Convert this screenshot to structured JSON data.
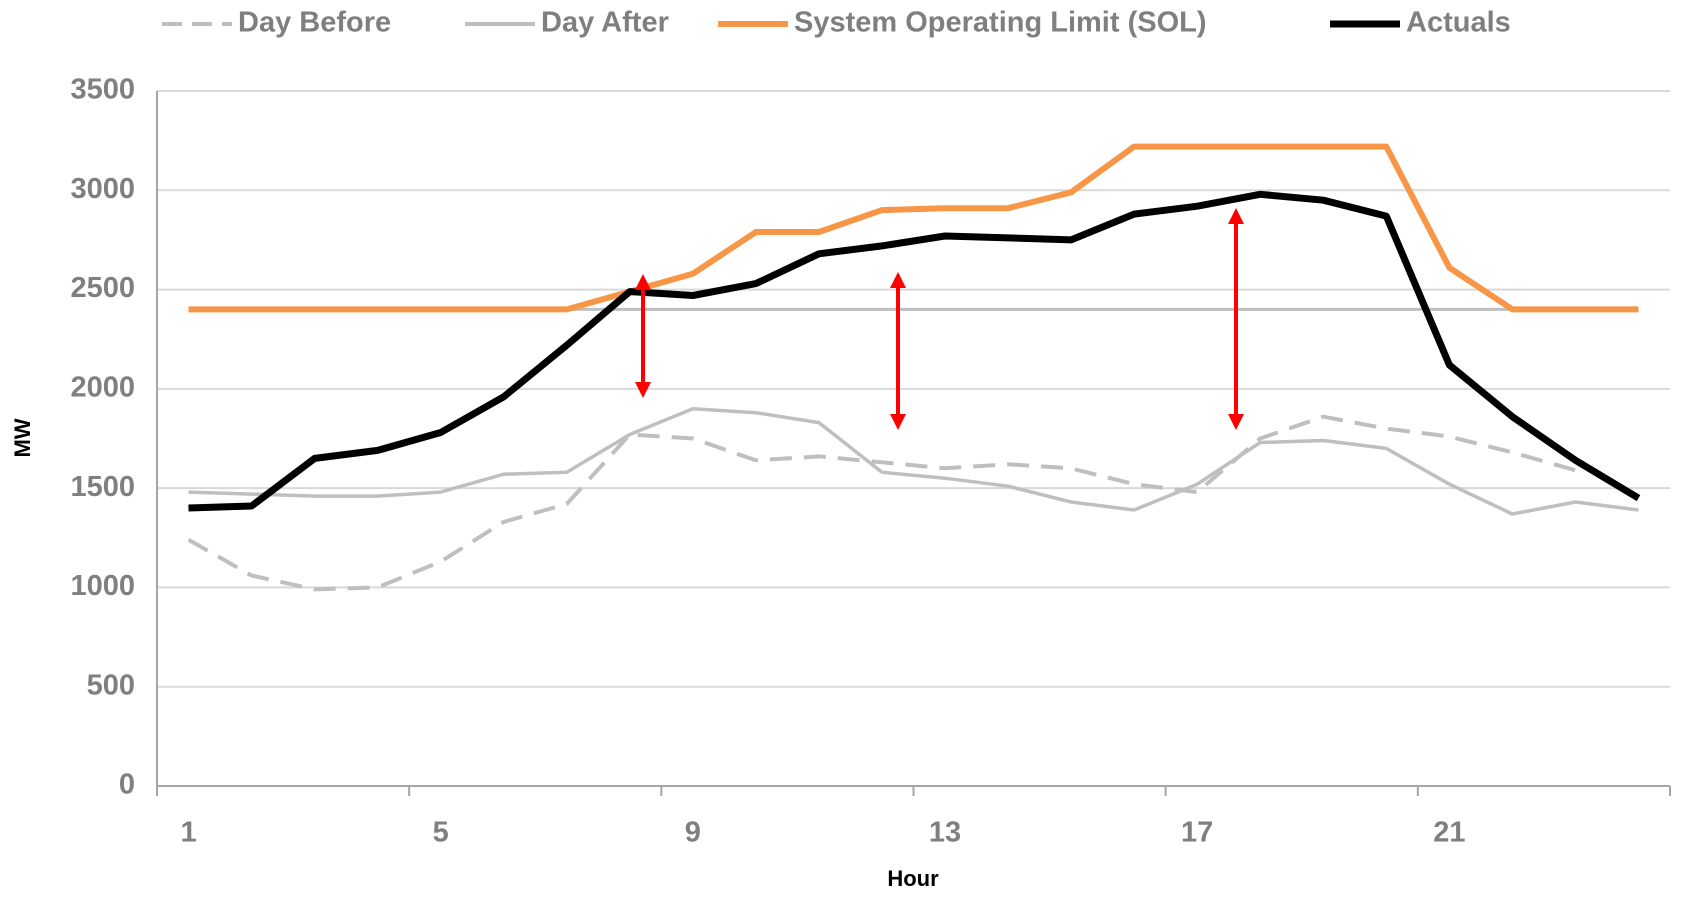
{
  "chart_data": {
    "type": "line",
    "xlabel": "Hour",
    "ylabel": "MW",
    "categories": [
      "1",
      null,
      null,
      null,
      "5",
      null,
      null,
      null,
      "9",
      null,
      null,
      null,
      "13",
      null,
      null,
      null,
      "17",
      null,
      null,
      null,
      "21",
      null,
      null,
      null
    ],
    "series": [
      {
        "color": "#bfbfbf",
        "dash": false,
        "width": 3,
        "values": [
          2400,
          2400,
          2400,
          2400,
          2400,
          2400,
          2400,
          2400,
          2400,
          2400,
          2400,
          2400,
          2400,
          2400,
          2400,
          2400,
          2400,
          2400,
          2400,
          2400,
          2400,
          2400,
          2400,
          2400
        ]
      },
      {
        "name": "Day Before",
        "color": "#bfbfbf",
        "dash": true,
        "width": 4,
        "values": [
          1240,
          1060,
          990,
          1000,
          1130,
          1330,
          1420,
          1770,
          1750,
          1640,
          1660,
          1630,
          1600,
          1620,
          1600,
          1520,
          1480,
          1750,
          1860,
          1800,
          1760,
          1680,
          1590,
          null
        ]
      },
      {
        "name": "Day After",
        "color": "#bfbfbf",
        "dash": false,
        "width": 3.5,
        "values": [
          1480,
          1470,
          1460,
          1460,
          1480,
          1570,
          1580,
          1770,
          1900,
          1880,
          1830,
          1580,
          1550,
          1510,
          1430,
          1390,
          1520,
          1730,
          1740,
          1700,
          1520,
          1370,
          1430,
          1390
        ]
      },
      {
        "name": "System Operating Limit (SOL)",
        "color": "#f79646",
        "dash": false,
        "width": 6,
        "values": [
          2400,
          2400,
          2400,
          2400,
          2400,
          2400,
          2400,
          2490,
          2580,
          2790,
          2790,
          2900,
          2910,
          2910,
          2990,
          3220,
          3220,
          3220,
          3220,
          3220,
          2610,
          2400,
          2400,
          2400
        ]
      },
      {
        "name": "Actuals",
        "color": "#000000",
        "dash": false,
        "width": 7,
        "values": [
          1400,
          1410,
          1650,
          1690,
          1780,
          1960,
          2220,
          2490,
          2470,
          2530,
          2680,
          2720,
          2770,
          2760,
          2750,
          2880,
          2920,
          2980,
          2950,
          2870,
          2120,
          1860,
          1640,
          1450
        ]
      }
    ],
    "ylim": [
      0,
      3500
    ],
    "yticks": [
      0,
      500,
      1000,
      1500,
      2000,
      2500,
      3000,
      3500
    ],
    "grid": true,
    "legend": "top"
  }
}
